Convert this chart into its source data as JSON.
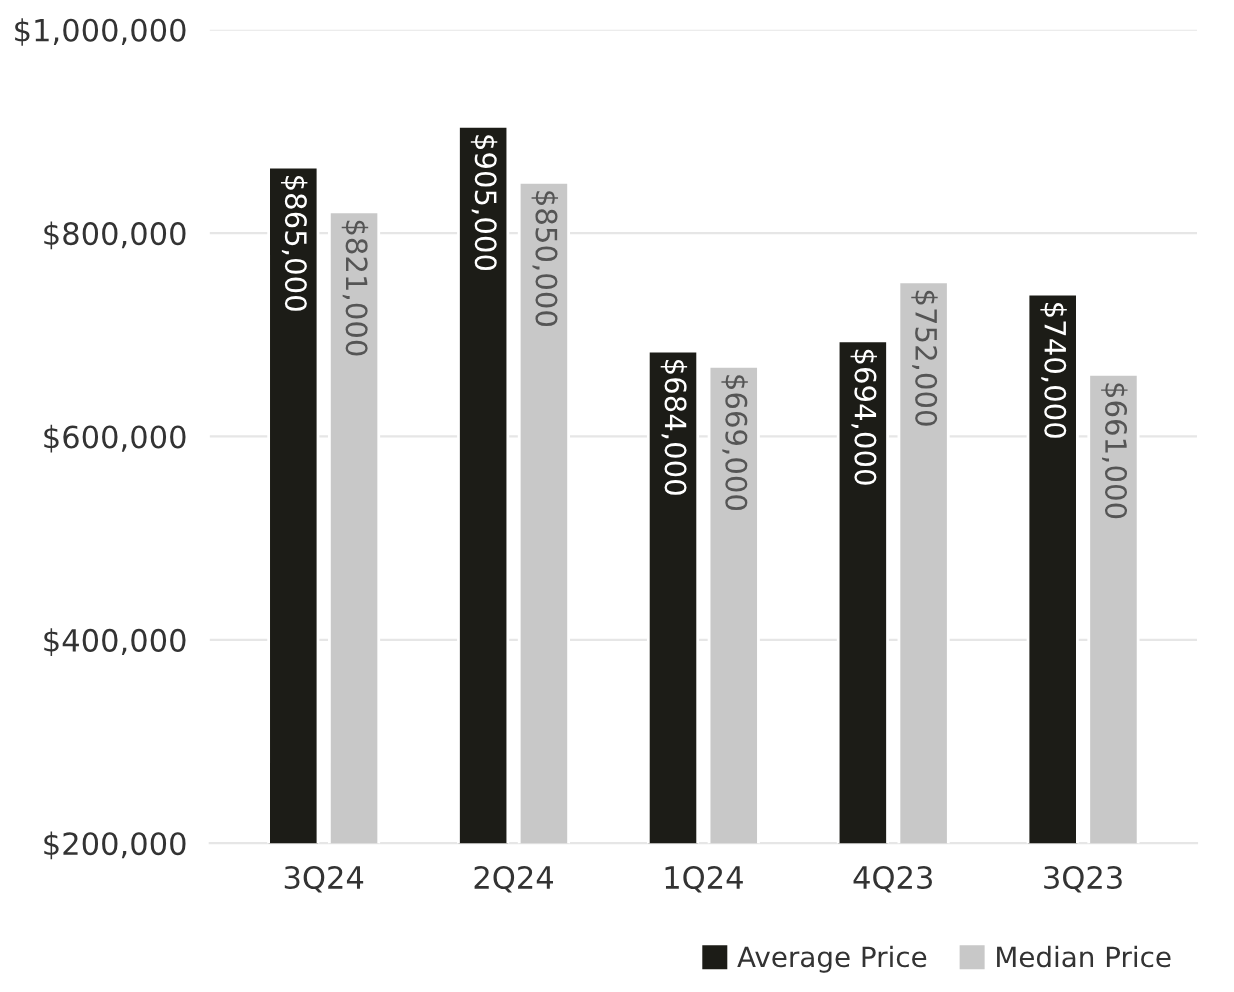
{
  "chart_data": {
    "type": "bar",
    "categories": [
      "3Q24",
      "2Q24",
      "1Q24",
      "4Q23",
      "3Q23"
    ],
    "series": [
      {
        "name": "Average Price",
        "color": "#1c1c17",
        "values": [
          865000,
          905000,
          684000,
          694000,
          740000
        ],
        "value_labels": [
          "$865,000",
          "$905,000",
          "$684,000",
          "$694,000",
          "$740,000"
        ]
      },
      {
        "name": "Median Price",
        "color": "#c8c8c8",
        "values": [
          821000,
          850000,
          669000,
          752000,
          661000
        ],
        "value_labels": [
          "$821,000",
          "$850,000",
          "$669,000",
          "$752,000",
          "$661,000"
        ]
      }
    ],
    "ylim": [
      200000,
      1000000
    ],
    "yticks": [
      {
        "value": 200000,
        "label": "$200,000"
      },
      {
        "value": 400000,
        "label": "$400,000"
      },
      {
        "value": 600000,
        "label": "$600,000"
      },
      {
        "value": 800000,
        "label": "$800,000"
      },
      {
        "value": 1000000,
        "label": "$1,000,000"
      }
    ],
    "grid": "y",
    "legend": "bottom right"
  }
}
